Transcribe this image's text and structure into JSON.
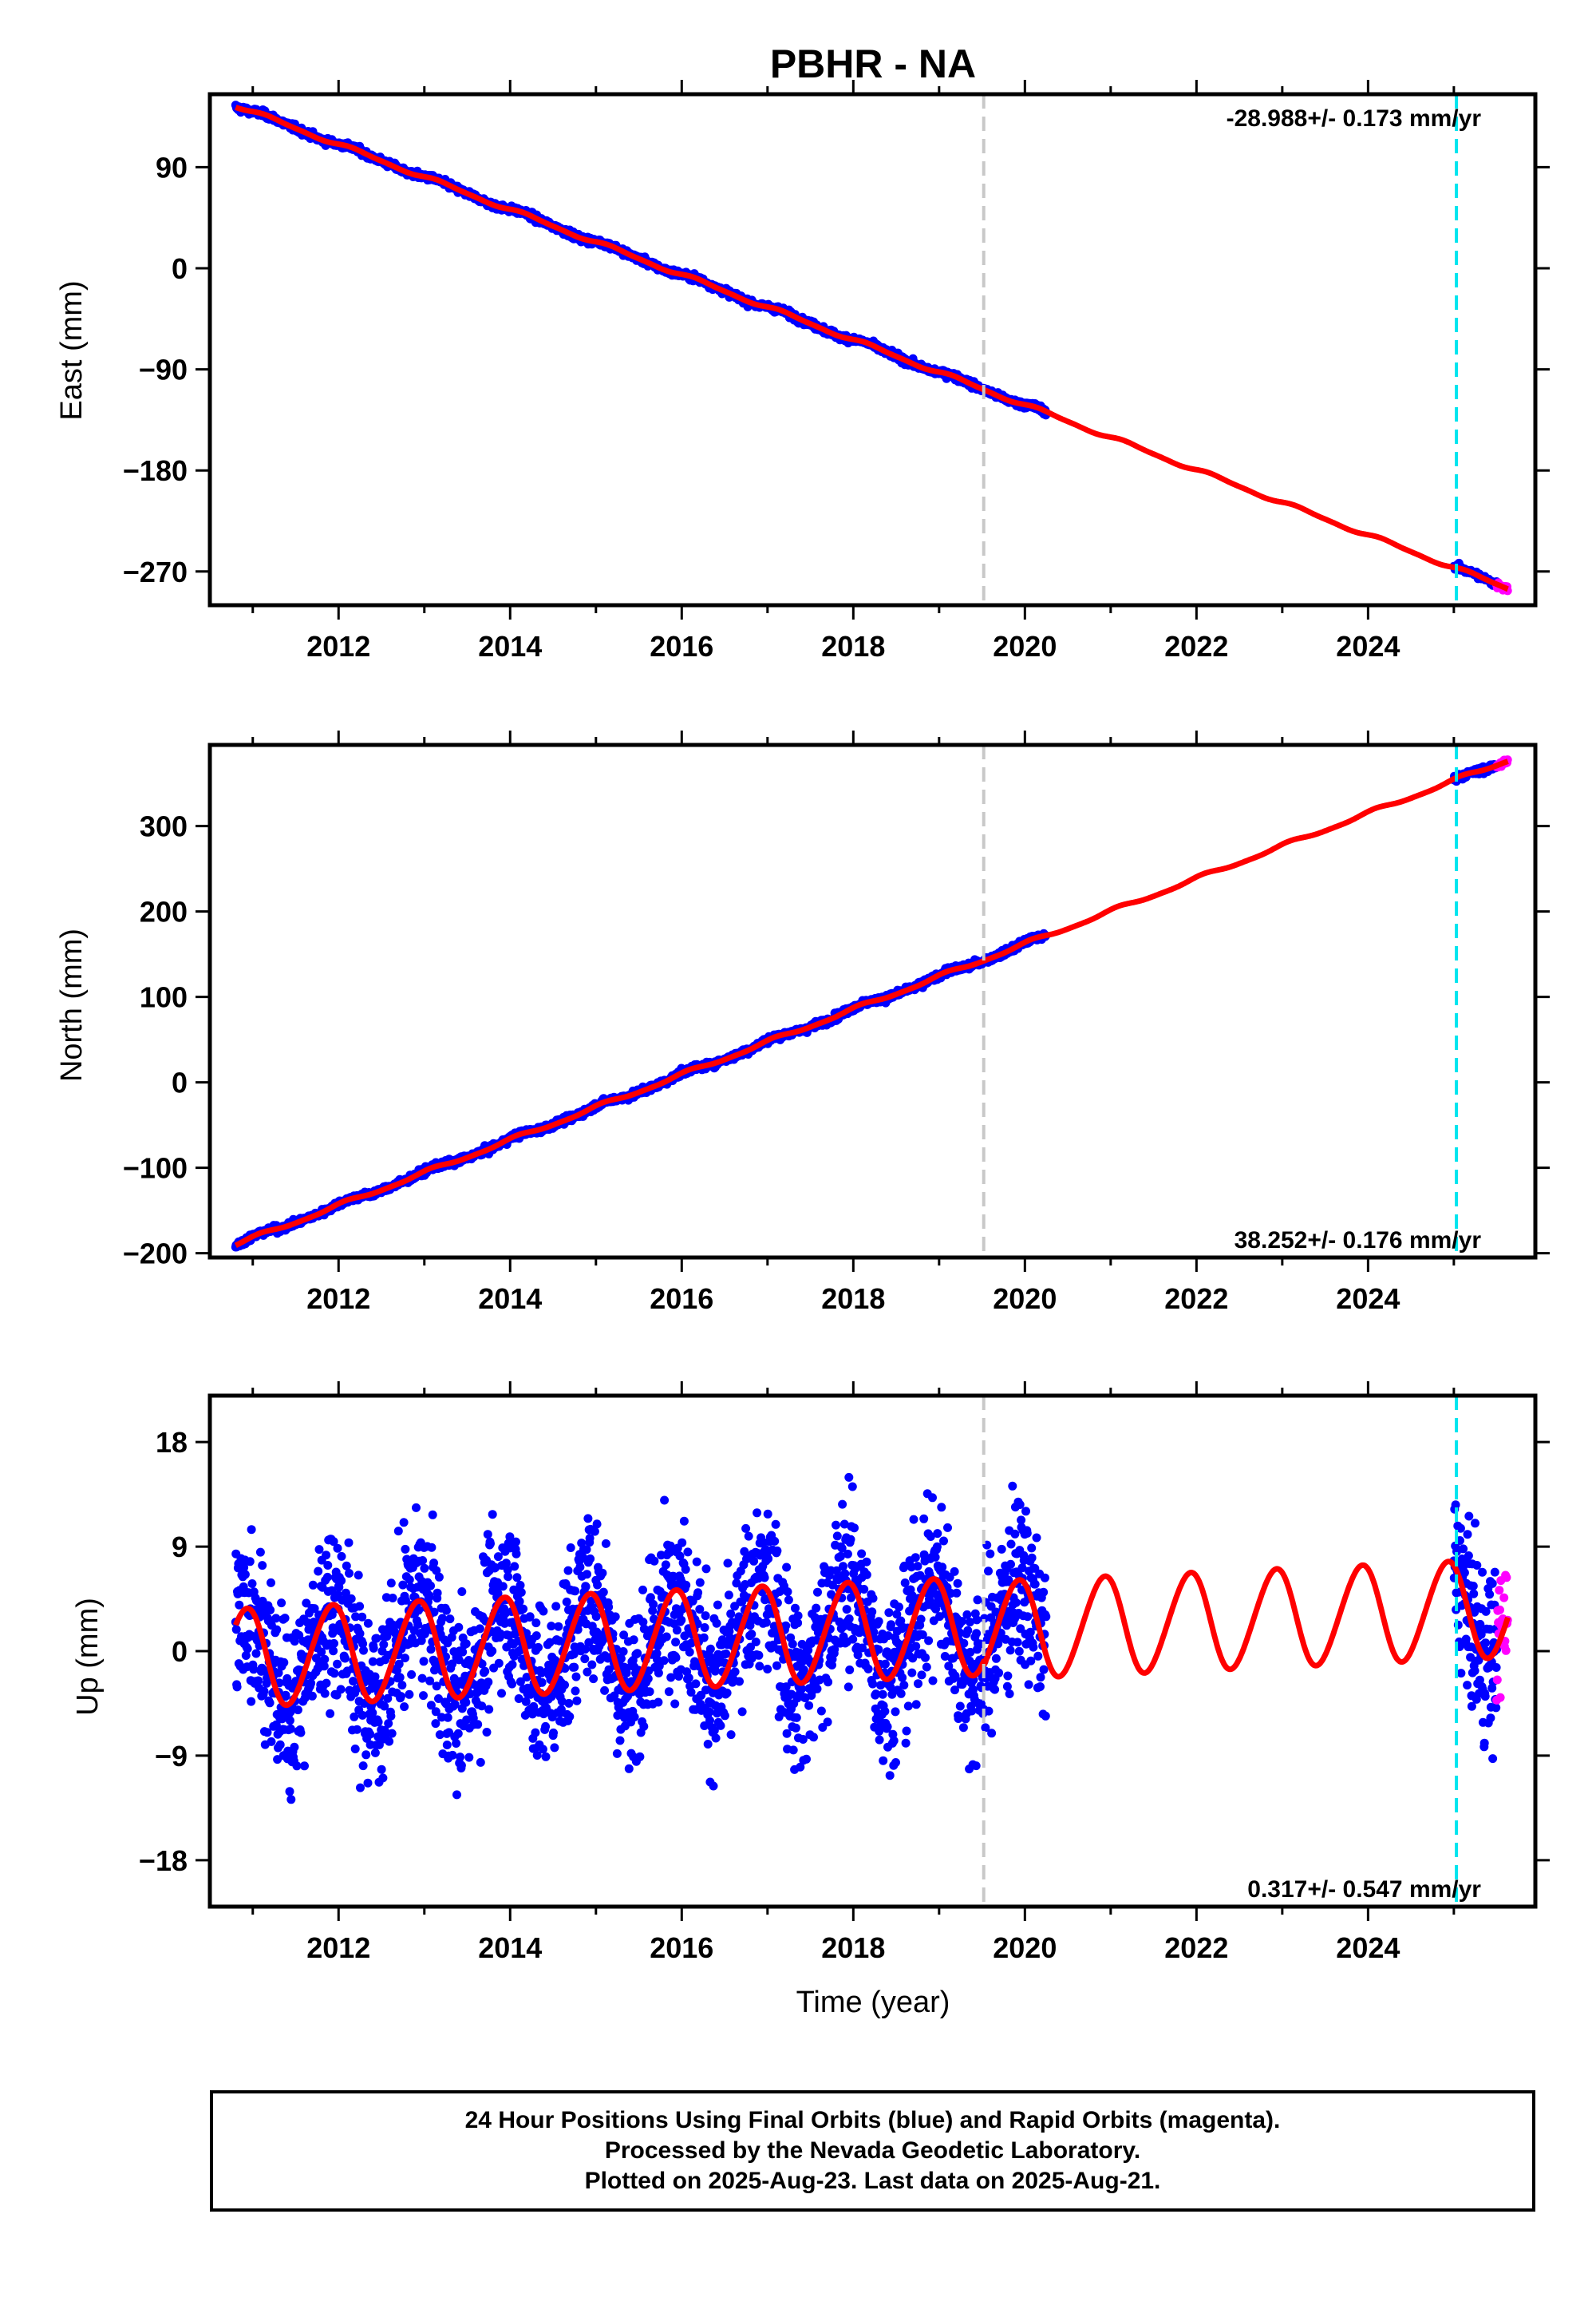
{
  "figure": {
    "title": "PBHR - NA",
    "xlabel": "Time (year)",
    "caption": {
      "line1": "24 Hour Positions Using Final Orbits (blue) and Rapid Orbits (magenta).",
      "line2": "Processed by the Nevada Geodetic Laboratory.",
      "line3": "Plotted on 2025-Aug-23. Last data on 2025-Aug-21."
    }
  },
  "colors": {
    "final_orbits": "#0000ff",
    "rapid_orbits": "#ff00ff",
    "model_fit": "#ff0000",
    "equipment_change": "#c8c8c8",
    "rapid_start": "#00e5ee"
  },
  "chart_data": [
    {
      "type": "scatter",
      "panel": "east",
      "ylabel": "East (mm)",
      "xlim": [
        2010.5,
        2025.95
      ],
      "ylim": [
        -300,
        155
      ],
      "x_ticks": [
        "2012",
        "2014",
        "2016",
        "2018",
        "2020",
        "2022",
        "2024"
      ],
      "y_ticks": [
        "90",
        "0",
        "−90",
        "−180",
        "−270"
      ],
      "y_tick_values": [
        90,
        0,
        -90,
        -180,
        -270
      ],
      "rate_text": "-28.988+/- 0.173 mm/yr",
      "rate_position": "top-right",
      "vertical_lines": [
        {
          "x": 2019.52,
          "style": "dashed",
          "color": "gray"
        },
        {
          "x": 2025.03,
          "style": "dashed",
          "color": "cyan"
        }
      ],
      "final_data_range": [
        [
          2010.8,
          2020.25
        ],
        [
          2025.0,
          2025.5
        ]
      ],
      "rapid_data_range": [
        2025.5,
        2025.63
      ],
      "model": {
        "t0": 2010.8,
        "y0": 145,
        "rate_mm_yr": -28.988,
        "annual_amp": 1.5,
        "semiannual_amp": 0.5,
        "phase": 0.2
      },
      "scatter_noise_mm": 1.5
    },
    {
      "type": "scatter",
      "panel": "north",
      "ylabel": "North (mm)",
      "xlim": [
        2010.5,
        2025.95
      ],
      "ylim": [
        -205,
        395
      ],
      "x_ticks": [
        "2012",
        "2014",
        "2016",
        "2018",
        "2020",
        "2022",
        "2024"
      ],
      "y_ticks": [
        "300",
        "200",
        "100",
        "0",
        "−100",
        "−200"
      ],
      "y_tick_values": [
        300,
        200,
        100,
        0,
        -100,
        -200
      ],
      "rate_text": "38.252+/- 0.176 mm/yr",
      "rate_position": "bottom-right",
      "vertical_lines": [
        {
          "x": 2019.52,
          "style": "dashed",
          "color": "gray"
        },
        {
          "x": 2025.03,
          "style": "dashed",
          "color": "cyan"
        }
      ],
      "final_data_range": [
        [
          2010.8,
          2020.25
        ],
        [
          2025.0,
          2025.5
        ]
      ],
      "rapid_data_range": [
        2025.5,
        2025.63
      ],
      "model": {
        "t0": 2010.8,
        "y0": -190,
        "rate_mm_yr": 38.252,
        "annual_amp": 2.0,
        "semiannual_amp": 0.6,
        "phase": 1.1
      },
      "scatter_noise_mm": 2.0
    },
    {
      "type": "scatter",
      "panel": "up",
      "ylabel": "Up (mm)",
      "xlim": [
        2010.5,
        2025.95
      ],
      "ylim": [
        -22,
        22
      ],
      "x_ticks": [
        "2012",
        "2014",
        "2016",
        "2018",
        "2020",
        "2022",
        "2024"
      ],
      "y_ticks": [
        "18",
        "9",
        "0",
        "−9",
        "−18"
      ],
      "y_tick_values": [
        18,
        9,
        0,
        -9,
        -18
      ],
      "rate_text": "0.317+/- 0.547 mm/yr",
      "rate_position": "bottom-right",
      "vertical_lines": [
        {
          "x": 2019.52,
          "style": "dashed",
          "color": "gray"
        },
        {
          "x": 2025.03,
          "style": "dashed",
          "color": "cyan"
        }
      ],
      "final_data_range": [
        [
          2010.8,
          2020.25
        ],
        [
          2025.0,
          2025.5
        ]
      ],
      "rapid_data_range": [
        2025.5,
        2025.63
      ],
      "model": {
        "t0": 2010.8,
        "y0": -1.0,
        "rate_mm_yr": 0.317,
        "annual_amp": 4.2,
        "semiannual_amp": 0.3,
        "phase": 2.1,
        "offset_pre": 0.4
      },
      "scatter_noise_mm": 3.6
    }
  ]
}
